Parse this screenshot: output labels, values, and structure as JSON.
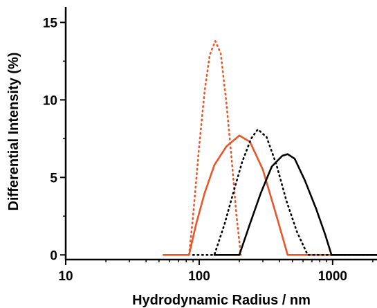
{
  "chart_data": {
    "type": "line",
    "title": "",
    "xlabel": "Hydrodynamic Radius / nm",
    "ylabel": "Differential Intensity (%)",
    "x_scale": "log",
    "xlim": [
      10,
      2150
    ],
    "ylim": [
      -0.3,
      16
    ],
    "x_ticks": [
      10,
      100,
      1000
    ],
    "x_tick_labels": [
      "10",
      "100",
      "1000"
    ],
    "y_ticks": [
      0,
      5,
      10,
      15
    ],
    "y_tick_labels": [
      "0",
      "5",
      "10",
      "15"
    ],
    "grid": false,
    "series": [
      {
        "style": "dotted",
        "color": "#e8562a",
        "points": [
          [
            84,
            0
          ],
          [
            90,
            2.5
          ],
          [
            100,
            7
          ],
          [
            110,
            10.6
          ],
          [
            120,
            12.9
          ],
          [
            132,
            13.8
          ],
          [
            145,
            13
          ],
          [
            160,
            9.8
          ],
          [
            175,
            6.2
          ],
          [
            190,
            2.6
          ],
          [
            205,
            0
          ]
        ]
      },
      {
        "style": "solid",
        "color": "#e8562a",
        "points": [
          [
            54,
            0
          ],
          [
            84,
            0
          ],
          [
            95,
            2
          ],
          [
            110,
            4
          ],
          [
            130,
            5.8
          ],
          [
            160,
            7
          ],
          [
            200,
            7.7
          ],
          [
            240,
            7.3
          ],
          [
            300,
            5.5
          ],
          [
            380,
            2.5
          ],
          [
            460,
            0
          ],
          [
            2150,
            0
          ]
        ]
      },
      {
        "style": "dotted",
        "color": "#000000",
        "points": [
          [
            90,
            0
          ],
          [
            130,
            0
          ],
          [
            155,
            2
          ],
          [
            180,
            4
          ],
          [
            210,
            6
          ],
          [
            245,
            7.5
          ],
          [
            275,
            8.1
          ],
          [
            320,
            7.6
          ],
          [
            380,
            5.8
          ],
          [
            450,
            3.5
          ],
          [
            540,
            1.5
          ],
          [
            650,
            0
          ],
          [
            2150,
            0
          ]
        ]
      },
      {
        "style": "solid",
        "color": "#000000",
        "points": [
          [
            130,
            0
          ],
          [
            200,
            0
          ],
          [
            240,
            2
          ],
          [
            290,
            4
          ],
          [
            350,
            5.7
          ],
          [
            420,
            6.4
          ],
          [
            460,
            6.5
          ],
          [
            520,
            6.2
          ],
          [
            620,
            4.8
          ],
          [
            750,
            3
          ],
          [
            880,
            1.3
          ],
          [
            980,
            0
          ],
          [
            2150,
            0
          ]
        ]
      }
    ]
  }
}
